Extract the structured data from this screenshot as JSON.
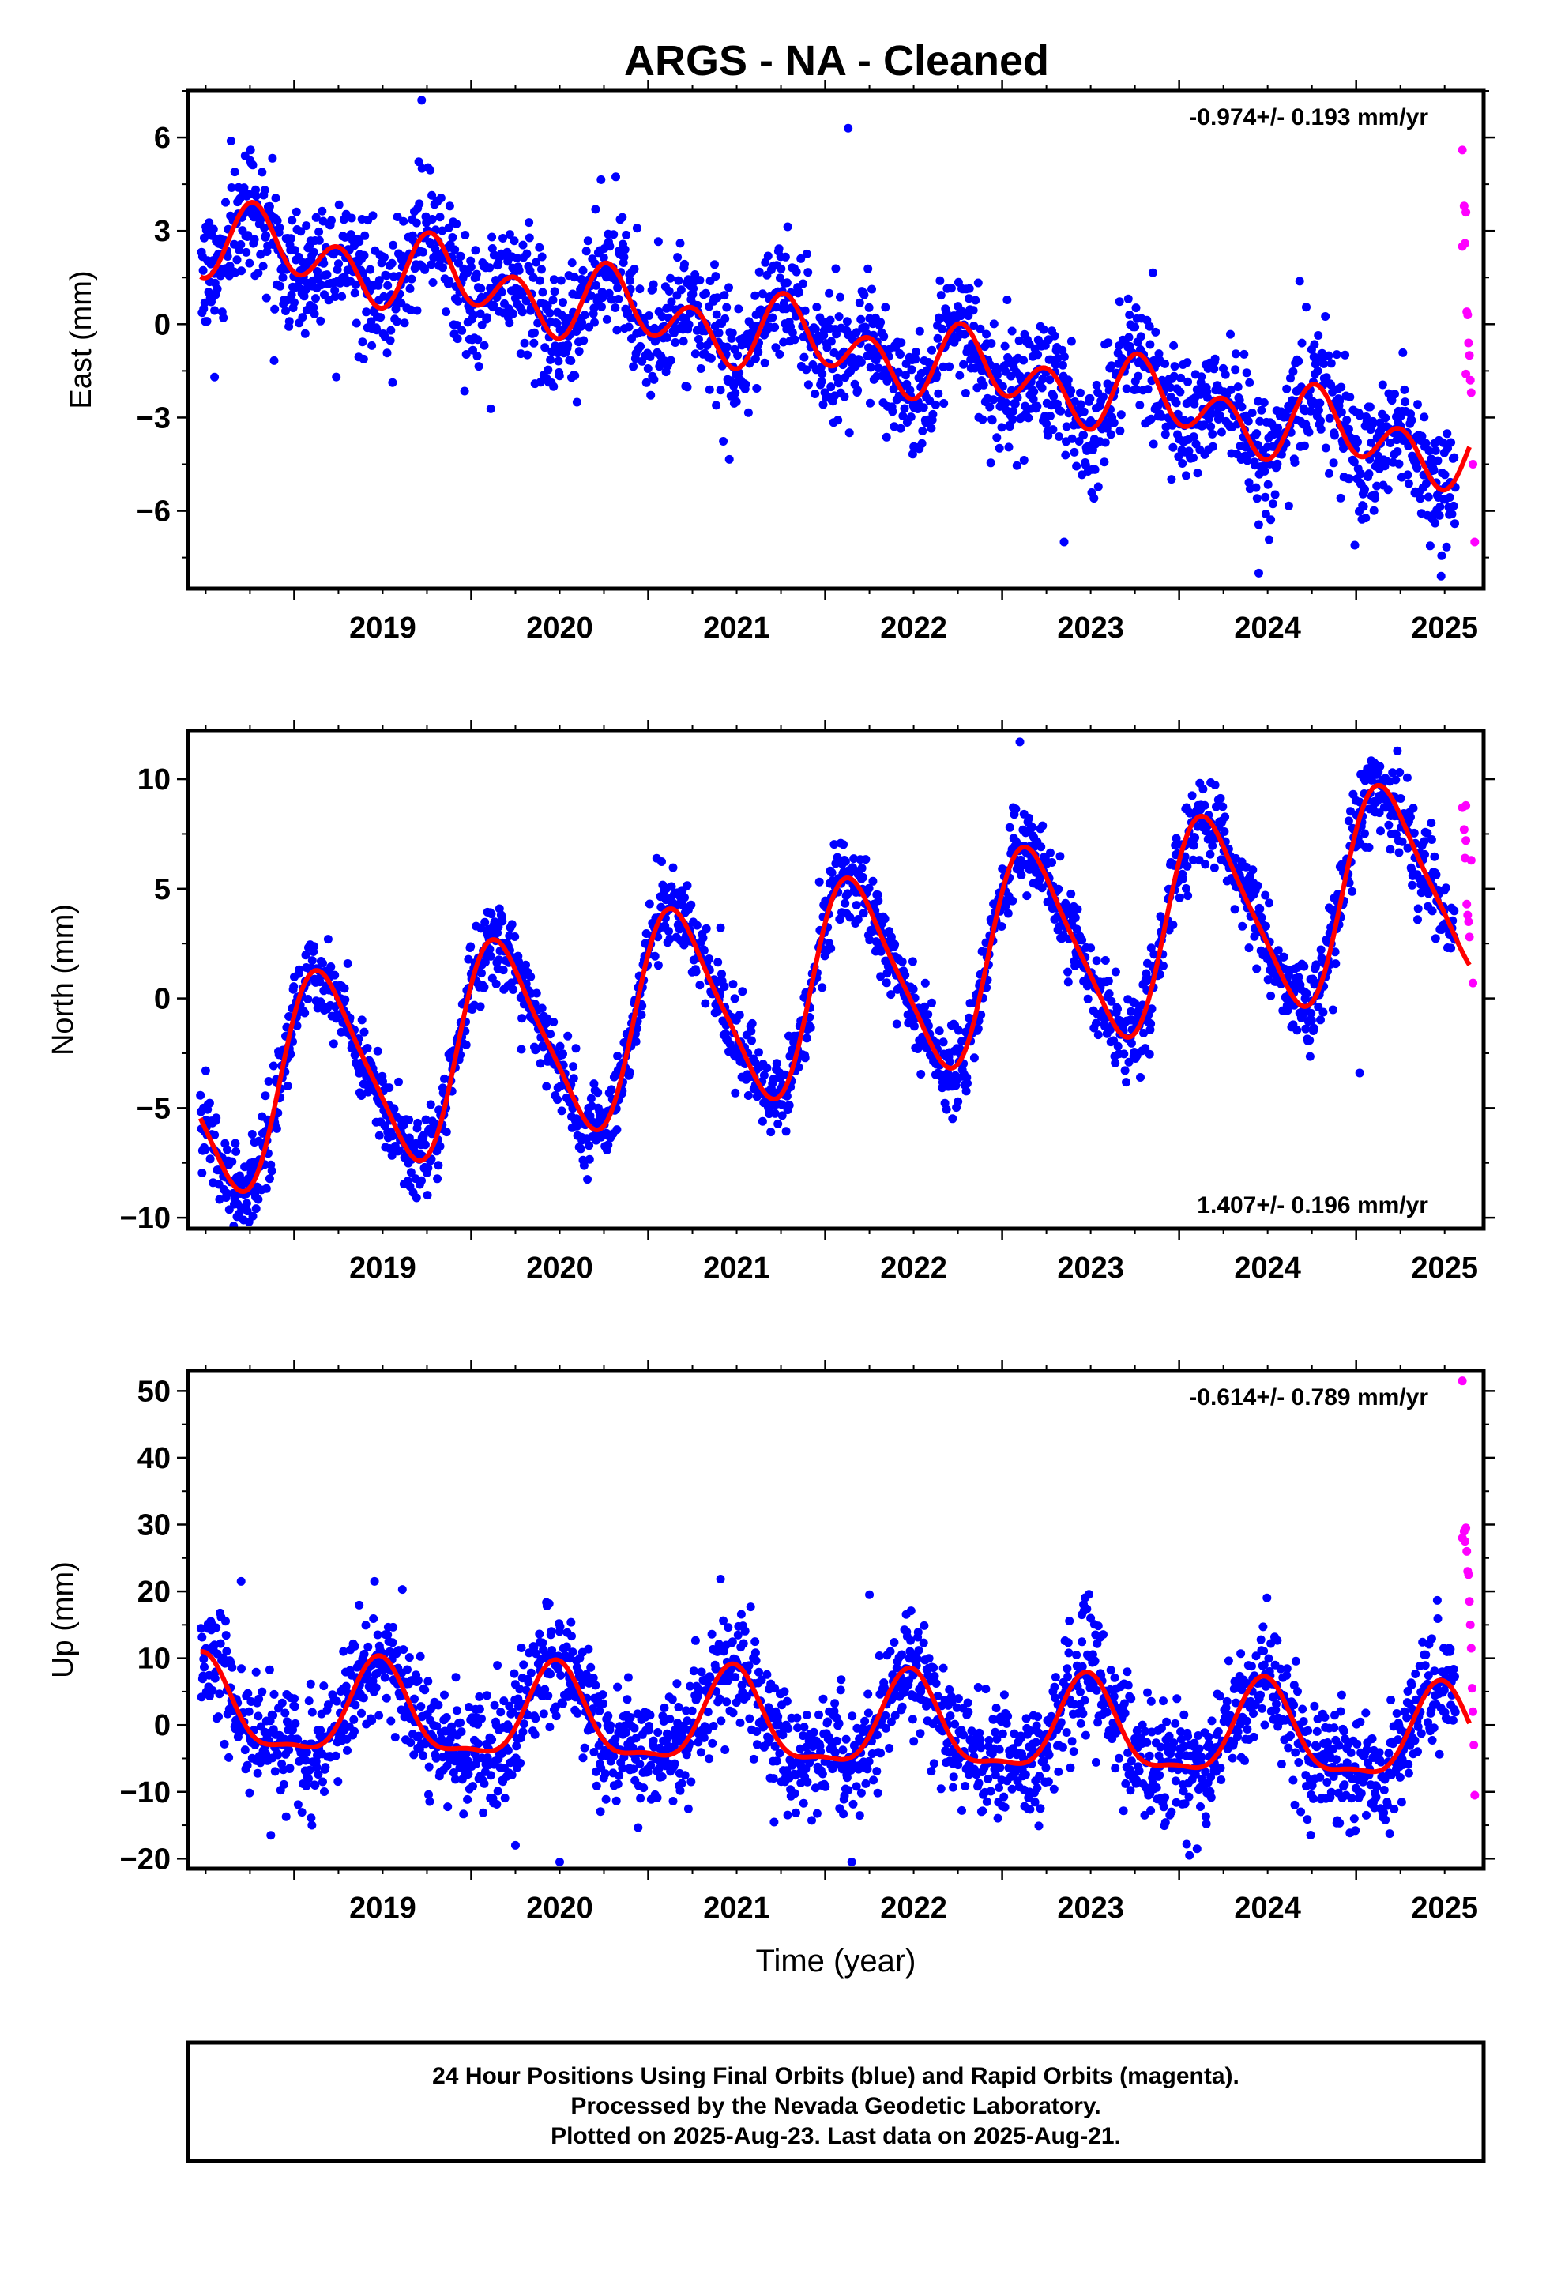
{
  "title": "ARGS  - NA - Cleaned",
  "footer": {
    "line1": "24 Hour Positions Using Final Orbits (blue) and Rapid Orbits (magenta).",
    "line2": "Processed by the Nevada Geodetic Laboratory.",
    "line3": "Plotted on 2025-Aug-23. Last data on 2025-Aug-21."
  },
  "colors": {
    "final": "#0000ff",
    "rapid": "#ff00ff",
    "model": "#ff0000"
  },
  "x_tick_labels": [
    "2019",
    "2020",
    "2021",
    "2022",
    "2023",
    "2024",
    "2025"
  ],
  "chart_data": [
    {
      "type": "scatter",
      "component": "east",
      "ylabel": "East (mm)",
      "xlabel": "",
      "xlim": [
        2018.4,
        2025.72
      ],
      "ylim": [
        -8.5,
        7.5
      ],
      "yticks": [
        -6,
        -3,
        0,
        3,
        6
      ],
      "rate_label": "-0.974+/- 0.193 mm/yr",
      "rate_position": "top-right",
      "model": {
        "offset": 2.75,
        "rate": -0.974,
        "annual_sin": -0.47,
        "annual_cos": 0.33,
        "semi_sin": -0.07,
        "semi_cos": -0.93,
        "ref_year": 2018.5
      },
      "final_series": {
        "x_range": [
          2018.47,
          2025.56
        ],
        "noise": 1.0
      },
      "rapid_points": [
        [
          2025.6,
          5.6
        ],
        [
          2025.61,
          3.8
        ],
        [
          2025.615,
          2.6
        ],
        [
          2025.62,
          3.6
        ],
        [
          2025.625,
          0.4
        ],
        [
          2025.63,
          0.3
        ],
        [
          2025.635,
          -0.6
        ],
        [
          2025.64,
          -1.0
        ],
        [
          2025.645,
          -1.8
        ],
        [
          2025.65,
          -2.2
        ],
        [
          2025.66,
          -4.5
        ],
        [
          2025.67,
          -7.0
        ],
        [
          2025.6,
          2.5
        ],
        [
          2025.62,
          -1.6
        ]
      ],
      "outliers": [
        [
          2019.72,
          7.2
        ],
        [
          2022.13,
          6.3
        ],
        [
          2018.55,
          -1.7
        ],
        [
          2023.35,
          -7.0
        ],
        [
          2024.45,
          -8.0
        ],
        [
          2025.48,
          -8.1
        ]
      ]
    },
    {
      "type": "scatter",
      "component": "north",
      "ylabel": "North (mm)",
      "xlabel": "",
      "xlim": [
        2018.4,
        2025.72
      ],
      "ylim": [
        -10.5,
        12.2
      ],
      "yticks": [
        -10,
        -5,
        0,
        5,
        10
      ],
      "rate_label": "1.407+/- 0.196 mm/yr",
      "rate_position": "bottom-right",
      "model": {
        "offset": -4.4,
        "rate": 1.407,
        "annual_sin": 3.9,
        "annual_cos": 2.25,
        "semi_sin": 0.45,
        "semi_cos": 0.67,
        "ref_year": 2018.5
      },
      "final_series": {
        "x_range": [
          2018.47,
          2025.56
        ],
        "noise": 0.95
      },
      "rapid_points": [
        [
          2025.6,
          8.7
        ],
        [
          2025.61,
          7.7
        ],
        [
          2025.615,
          6.4
        ],
        [
          2025.62,
          8.8
        ],
        [
          2025.625,
          4.3
        ],
        [
          2025.63,
          3.8
        ],
        [
          2025.635,
          3.5
        ],
        [
          2025.64,
          2.8
        ],
        [
          2025.65,
          6.3
        ],
        [
          2025.66,
          0.7
        ],
        [
          2025.62,
          7.2
        ]
      ],
      "outliers": [
        [
          2023.1,
          11.7
        ],
        [
          2025.02,
          -3.4
        ],
        [
          2018.5,
          -3.3
        ]
      ]
    },
    {
      "type": "scatter",
      "component": "up",
      "ylabel": "Up (mm)",
      "xlabel": "Time (year)",
      "xlim": [
        2018.4,
        2025.72
      ],
      "ylim": [
        -21.5,
        53
      ],
      "yticks": [
        -20,
        -10,
        0,
        10,
        20,
        30,
        40,
        50
      ],
      "rate_label": "-0.614+/- 0.789 mm/yr",
      "rate_position": "top-right",
      "model": {
        "offset": 2.0,
        "rate": -0.614,
        "annual_sin": 0.83,
        "annual_cos": -6.75,
        "semi_sin": -0.64,
        "semi_cos": 2.1,
        "ref_year": 2018.5
      },
      "final_series": {
        "x_range": [
          2018.47,
          2025.56
        ],
        "noise": 4.3
      },
      "rapid_points": [
        [
          2025.6,
          51.5
        ],
        [
          2025.61,
          29.0
        ],
        [
          2025.615,
          27.5
        ],
        [
          2025.62,
          29.5
        ],
        [
          2025.625,
          26.0
        ],
        [
          2025.63,
          23.0
        ],
        [
          2025.635,
          22.5
        ],
        [
          2025.64,
          18.5
        ],
        [
          2025.645,
          15.0
        ],
        [
          2025.65,
          11.5
        ],
        [
          2025.655,
          5.5
        ],
        [
          2025.66,
          2.0
        ],
        [
          2025.665,
          -3.0
        ],
        [
          2025.67,
          -10.5
        ],
        [
          2025.6,
          28.0
        ]
      ],
      "outliers": [
        [
          2019.1,
          -15.0
        ],
        [
          2020.25,
          -18.0
        ],
        [
          2020.5,
          -20.5
        ],
        [
          2022.15,
          -20.5
        ],
        [
          2022.25,
          19.5
        ],
        [
          2023.45,
          16.5
        ],
        [
          2018.7,
          21.5
        ]
      ]
    }
  ]
}
